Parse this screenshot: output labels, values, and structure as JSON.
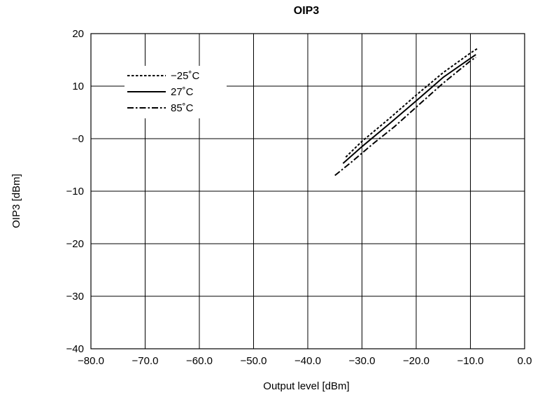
{
  "chart_data": {
    "type": "line",
    "title": "OIP3",
    "xlabel": "Output level [dBm]",
    "ylabel": "OIP3 [dBm]",
    "xlim": [
      -80,
      0
    ],
    "ylim": [
      -40,
      20
    ],
    "xticks": [
      -80,
      -70,
      -60,
      -50,
      -40,
      -30,
      -20,
      -10,
      0
    ],
    "xtick_labels": [
      "−80.0",
      "−70.0",
      "−60.0",
      "−50.0",
      "−40.0",
      "−30.0",
      "−20.0",
      "−10.0",
      "0.0"
    ],
    "yticks": [
      -40,
      -30,
      -20,
      -10,
      0,
      10,
      20
    ],
    "ytick_labels": [
      "−40",
      "−30",
      "−20",
      "−10",
      "−0",
      "10",
      "20"
    ],
    "grid": true,
    "legend_position": "top-left",
    "series": [
      {
        "name": "−25˚C",
        "style": "dotted",
        "color": "#000000",
        "x": [
          -33.0,
          -30.0,
          -25.0,
          -20.0,
          -15.0,
          -10.0,
          -8.5
        ],
        "y": [
          -3.5,
          -0.5,
          3.8,
          8.3,
          12.6,
          16.3,
          17.3
        ]
      },
      {
        "name": "27˚C",
        "style": "solid",
        "color": "#000000",
        "x": [
          -33.5,
          -30.0,
          -25.0,
          -20.0,
          -15.0,
          -10.0,
          -9.0
        ],
        "y": [
          -4.7,
          -1.5,
          2.8,
          7.2,
          11.7,
          15.3,
          16.0
        ]
      },
      {
        "name": "85˚C",
        "style": "dashdot",
        "color": "#000000",
        "x": [
          -35.0,
          -32.0,
          -28.0,
          -24.0,
          -20.0,
          -15.0,
          -10.0,
          -9.0
        ],
        "y": [
          -7.0,
          -4.5,
          -1.0,
          2.3,
          6.0,
          10.6,
          14.8,
          15.5
        ]
      }
    ]
  }
}
